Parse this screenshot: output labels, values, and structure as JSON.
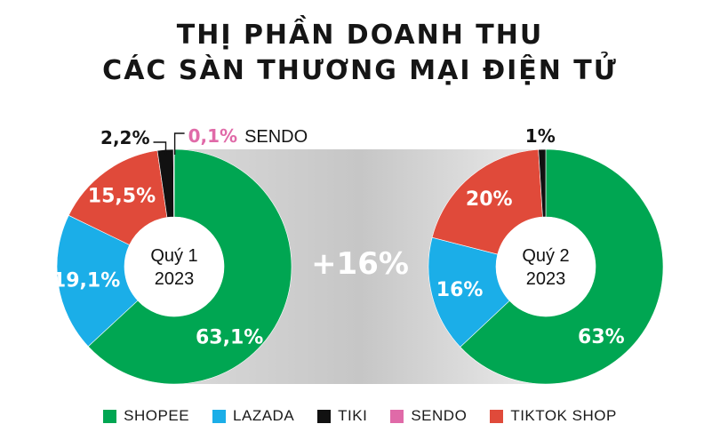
{
  "chart_data": {
    "type": "pie",
    "title": "THỊ PHẦN DOANH THU",
    "subtitle": "CÁC SÀN THƯƠNG MẠI ĐIỆN TỬ",
    "growth_label": "+16%",
    "legend_position": "bottom",
    "categories": [
      "SHOPEE",
      "LAZADA",
      "TIKI",
      "SENDO",
      "TIKTOK SHOP"
    ],
    "colors": [
      "#00a652",
      "#1baee8",
      "#111111",
      "#e06aa8",
      "#e04a3a"
    ],
    "series": [
      {
        "name": "Quý 1 2023",
        "center_line1": "Quý 1",
        "center_line2": "2023",
        "values": [
          63.1,
          19.1,
          2.2,
          0.1,
          15.5
        ],
        "labels": [
          "63,1%",
          "19,1%",
          "2,2%",
          "0,1%",
          "15,5%"
        ],
        "outside_sendo_name": "SENDO"
      },
      {
        "name": "Quý 2 2023",
        "center_line1": "Quý 2",
        "center_line2": "2023",
        "values": [
          63,
          16,
          1,
          0,
          20
        ],
        "labels": [
          "63%",
          "16%",
          "1%",
          "",
          "20%"
        ]
      }
    ]
  }
}
